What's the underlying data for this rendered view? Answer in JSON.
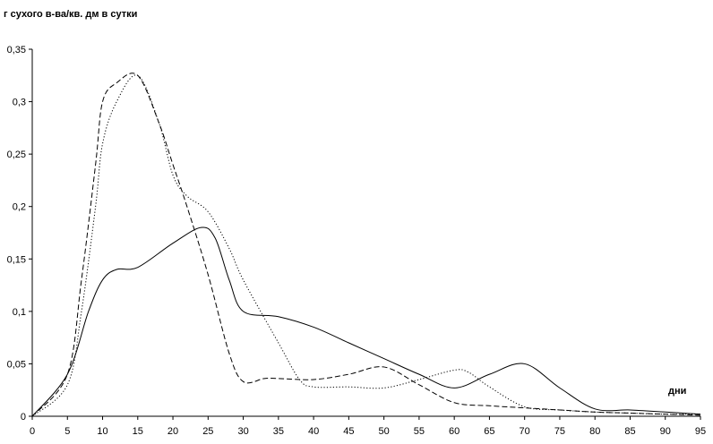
{
  "chart_data": {
    "type": "line",
    "title": "",
    "ylabel": "г сухого в-ва/кв. дм в сутки",
    "xlabel": "",
    "annotation": "дни",
    "xlim": [
      0,
      95
    ],
    "ylim": [
      0,
      0.35
    ],
    "x_ticks": [
      "0",
      "5",
      "10",
      "15",
      "20",
      "25",
      "30",
      "35",
      "40",
      "45",
      "50",
      "55",
      "60",
      "65",
      "70",
      "75",
      "80",
      "85",
      "90",
      "95"
    ],
    "y_ticks": [
      "0",
      "0,05",
      "0,1",
      "0,15",
      "0,2",
      "0,25",
      "0,3",
      "0,35"
    ],
    "grid": false,
    "legend": "none",
    "series": [
      {
        "style": "solid",
        "x": [
          0,
          5,
          8,
          10,
          12,
          15,
          20,
          24,
          26,
          28,
          30,
          35,
          40,
          45,
          50,
          55,
          60,
          65,
          70,
          75,
          80,
          85,
          90,
          95
        ],
        "y": [
          0,
          0.04,
          0.1,
          0.13,
          0.14,
          0.142,
          0.165,
          0.18,
          0.17,
          0.13,
          0.1,
          0.095,
          0.085,
          0.07,
          0.055,
          0.04,
          0.027,
          0.04,
          0.05,
          0.027,
          0.007,
          0.006,
          0.004,
          0.002
        ]
      },
      {
        "style": "dashed",
        "x": [
          0,
          5,
          7,
          9,
          10,
          12,
          15,
          18,
          20,
          22,
          25,
          28,
          30,
          33,
          35,
          40,
          45,
          50,
          55,
          60,
          65,
          70,
          75,
          80,
          85,
          90,
          95
        ],
        "y": [
          0,
          0.04,
          0.13,
          0.24,
          0.3,
          0.318,
          0.325,
          0.28,
          0.24,
          0.2,
          0.135,
          0.06,
          0.033,
          0.036,
          0.036,
          0.035,
          0.04,
          0.047,
          0.03,
          0.013,
          0.01,
          0.008,
          0.006,
          0.004,
          0.003,
          0.002,
          0.001
        ]
      },
      {
        "style": "dotted",
        "x": [
          0,
          5,
          7,
          9,
          10,
          12,
          15,
          18,
          20,
          22,
          25,
          28,
          30,
          35,
          38,
          40,
          45,
          50,
          55,
          60,
          62,
          65,
          70,
          75,
          80,
          85,
          90,
          95
        ],
        "y": [
          0,
          0.03,
          0.1,
          0.2,
          0.26,
          0.3,
          0.325,
          0.28,
          0.23,
          0.21,
          0.195,
          0.16,
          0.13,
          0.07,
          0.035,
          0.028,
          0.028,
          0.027,
          0.035,
          0.044,
          0.042,
          0.028,
          0.009,
          0.006,
          0.004,
          0.003,
          0.002,
          0.002
        ]
      }
    ]
  }
}
